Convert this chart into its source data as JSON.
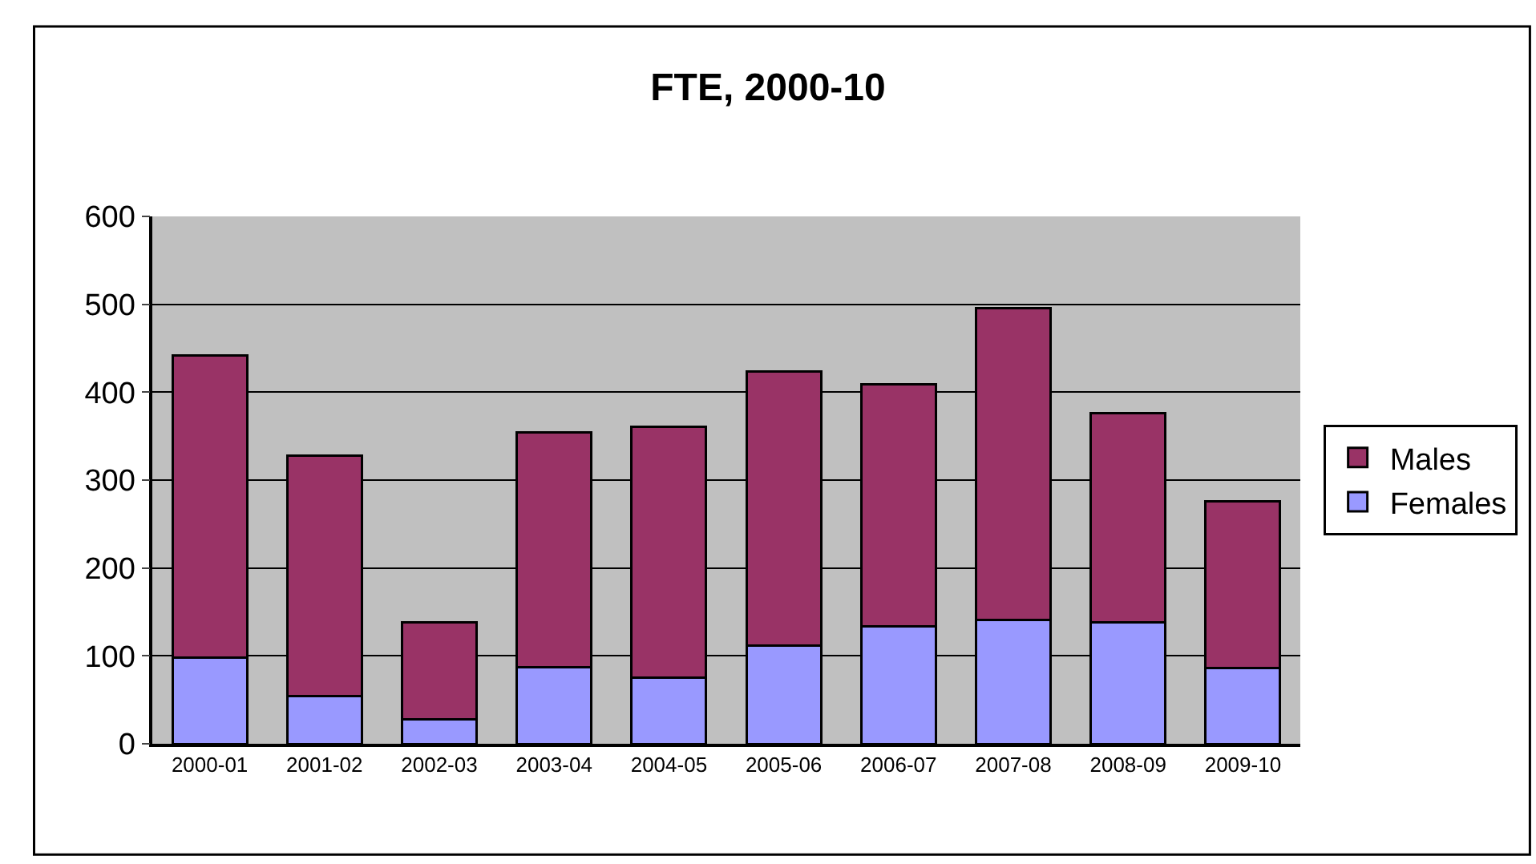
{
  "chart_data": {
    "type": "bar",
    "title": "FTE, 2000-10",
    "stacked": true,
    "categories": [
      "2000-01",
      "2001-02",
      "2002-03",
      "2003-04",
      "2004-05",
      "2005-06",
      "2006-07",
      "2007-08",
      "2008-09",
      "2009-10"
    ],
    "series": [
      {
        "name": "Females",
        "color": "#9999ff",
        "values": [
          98,
          54,
          28,
          87,
          75,
          112,
          134,
          141,
          138,
          86
        ]
      },
      {
        "name": "Males",
        "color": "#993366",
        "values": [
          344,
          274,
          110,
          267,
          286,
          312,
          275,
          355,
          238,
          190
        ]
      }
    ],
    "ylim": [
      0,
      600
    ],
    "yticks": [
      0,
      100,
      200,
      300,
      400,
      500,
      600
    ],
    "grid": "y",
    "legend": "right"
  }
}
